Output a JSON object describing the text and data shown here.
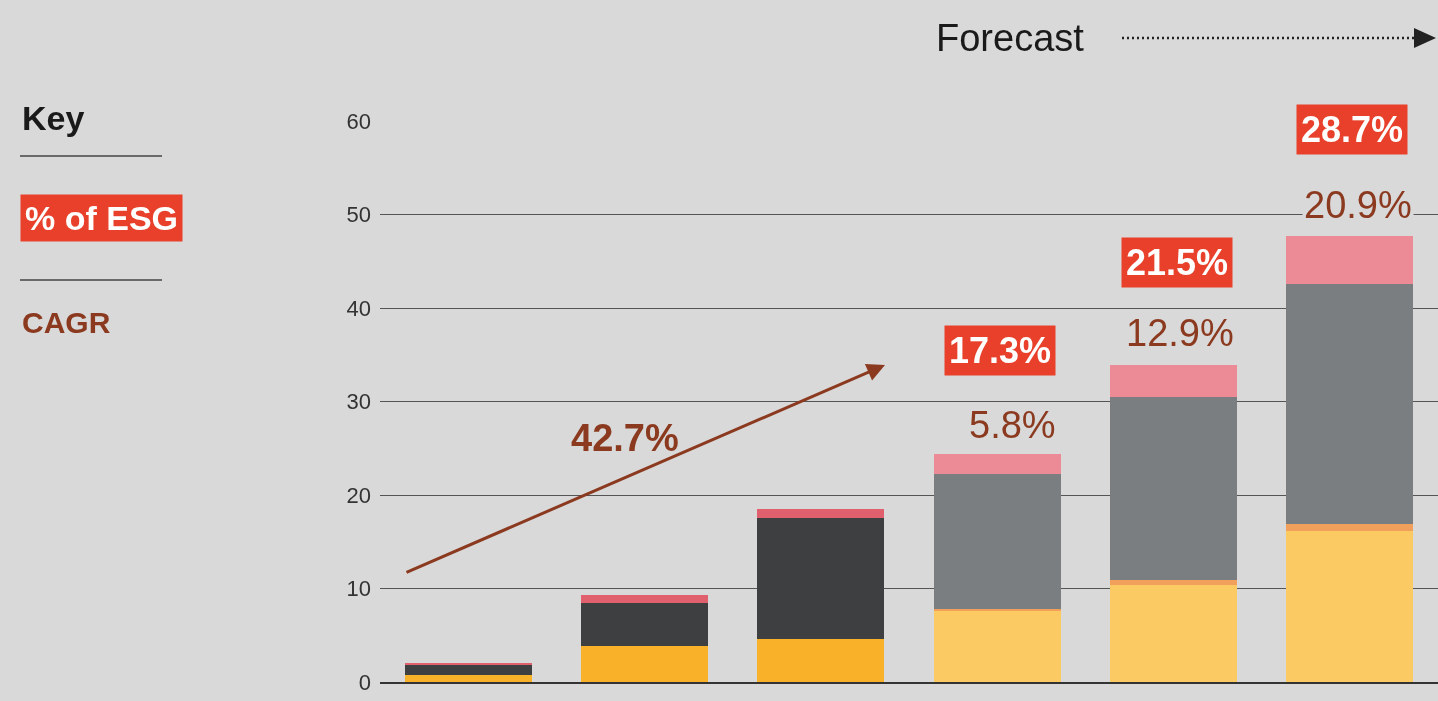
{
  "chart_data": {
    "type": "bar",
    "stacked": true,
    "categories": [
      null,
      null,
      null,
      null,
      null,
      null
    ],
    "series": [
      {
        "colors": [
          "#f9b12a",
          "#f9b12a",
          "#f9b12a",
          "#fbca62",
          "#fbca62",
          "#fbca62"
        ],
        "values": [
          0.8,
          3.9,
          4.6,
          7.6,
          10.4,
          16.2
        ]
      },
      {
        "color": "#f0a05a",
        "values": [
          null,
          null,
          null,
          0.2,
          0.5,
          0.7
        ]
      },
      {
        "colors": [
          "#3d3f41",
          "#3d3f41",
          "#3d3f41",
          "#7b7e80",
          "#7b7e80",
          "#7b7e80"
        ],
        "values": [
          1.0,
          4.6,
          12.9,
          14.5,
          19.6,
          25.7
        ]
      },
      {
        "colors": [
          "#e0606e",
          "#e0606e",
          "#e0606e",
          "#ec8a96",
          "#ec8a96",
          "#ec8a96"
        ],
        "values": [
          0.2,
          0.8,
          1.0,
          2.1,
          3.4,
          5.1
        ]
      }
    ],
    "ylim": [
      0,
      60
    ],
    "yticks": [
      0,
      10,
      20,
      30,
      40,
      50,
      60
    ],
    "grid": "y",
    "tick_labels": "y",
    "annotations": [
      "Forecast",
      "Key",
      "% of ESG",
      "CAGR",
      "42.7%",
      "17.3%",
      "21.5%",
      "28.7%",
      "5.8%",
      "12.9%",
      "20.9%"
    ]
  }
}
